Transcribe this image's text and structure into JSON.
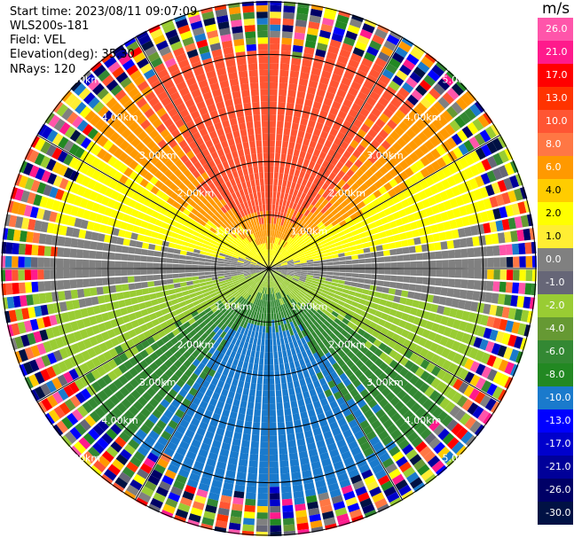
{
  "header": {
    "start_time": "Start time: 2023/08/11 09:07:09",
    "instrument": "WLS200s-181",
    "field": "Field: VEL",
    "elevation": "Elevation(deg): 35.30",
    "nrays": "NRays: 120"
  },
  "colorbar": {
    "unit": "m/s",
    "labels": [
      "26.0",
      "21.0",
      "17.0",
      "13.0",
      "10.0",
      "8.0",
      "6.0",
      "4.0",
      "2.0",
      "1.0",
      "0.0",
      "-1.0",
      "-2.0",
      "-4.0",
      "-6.0",
      "-8.0",
      "-10.0",
      "-13.0",
      "-17.0",
      "-21.0",
      "-26.0",
      "-30.0"
    ],
    "colors": [
      "#ff55aa",
      "#ff1a8c",
      "#ff0000",
      "#ff3300",
      "#ff5533",
      "#ff7744",
      "#ff9900",
      "#ffcc00",
      "#ffff00",
      "#ffee33",
      "#808080",
      "#666677",
      "#99cc33",
      "#669933",
      "#338833",
      "#228822",
      "#1a7acc",
      "#0000ff",
      "#0000cc",
      "#000099",
      "#000066",
      "#001144"
    ]
  },
  "chart_data": {
    "type": "ppi",
    "title": "",
    "unit": "m/s",
    "nrays": 120,
    "max_range_km": 5.0,
    "range_rings_km": [
      1.0,
      2.0,
      3.0,
      4.0,
      5.0
    ],
    "ring_labels": [
      "1.00km",
      "2.00km",
      "3.00km",
      "4.00km",
      "5.00km"
    ],
    "velocity_pattern": "north: +8 to +10 m/s (orange-red); south: -8 to -10 m/s (blue); east/west: ~0 m/s (gray); noise beyond ~4.2 km",
    "colors": {
      "pos_high": "#ff5533",
      "pos_mid": "#ff9900",
      "pos_low": "#ffff00",
      "zero": "#808080",
      "neg_low": "#99cc33",
      "neg_mid": "#338833",
      "neg_high": "#1a7acc"
    }
  }
}
